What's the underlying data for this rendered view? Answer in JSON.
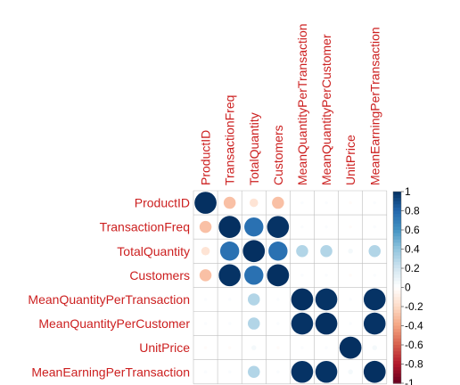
{
  "chart_data": {
    "type": "heatmap",
    "variables": [
      "ProductID",
      "TransactionFreq",
      "TotalQuantity",
      "Customers",
      "MeanQuantityPerTransaction",
      "MeanQuantityPerCustomer",
      "UnitPrice",
      "MeanEarningPerTransaction"
    ],
    "matrix": [
      [
        1.0,
        -0.3,
        -0.15,
        -0.3,
        0.02,
        0.02,
        -0.02,
        0.02
      ],
      [
        -0.3,
        1.0,
        0.75,
        0.99,
        0.02,
        0.02,
        -0.02,
        0.02
      ],
      [
        -0.15,
        0.75,
        1.0,
        0.75,
        0.3,
        0.3,
        0.05,
        0.3
      ],
      [
        -0.3,
        0.99,
        0.75,
        1.0,
        0.02,
        0.02,
        -0.02,
        0.02
      ],
      [
        0.02,
        0.02,
        0.3,
        0.02,
        1.0,
        0.99,
        0.02,
        0.99
      ],
      [
        0.02,
        0.02,
        0.3,
        0.02,
        0.99,
        1.0,
        0.02,
        0.99
      ],
      [
        -0.02,
        -0.02,
        0.05,
        -0.02,
        0.02,
        0.02,
        1.0,
        0.05
      ],
      [
        0.02,
        0.02,
        0.3,
        0.02,
        0.99,
        0.99,
        0.05,
        1.0
      ]
    ],
    "colorbar": {
      "range": [
        -1,
        1
      ],
      "ticks": [
        "1",
        "0.8",
        "0.6",
        "0.4",
        "0.2",
        "0",
        "-0.2",
        "-0.4",
        "-0.6",
        "-0.8",
        "-1"
      ]
    },
    "colors": {
      "label": "#cc1f1f",
      "grid": "#bfbfbf",
      "scale": [
        "#67001f",
        "#b2182b",
        "#d6604d",
        "#f4a582",
        "#fddbc7",
        "#ffffff",
        "#d1e5f0",
        "#92c5de",
        "#4393c3",
        "#2166ac",
        "#053061"
      ]
    }
  }
}
